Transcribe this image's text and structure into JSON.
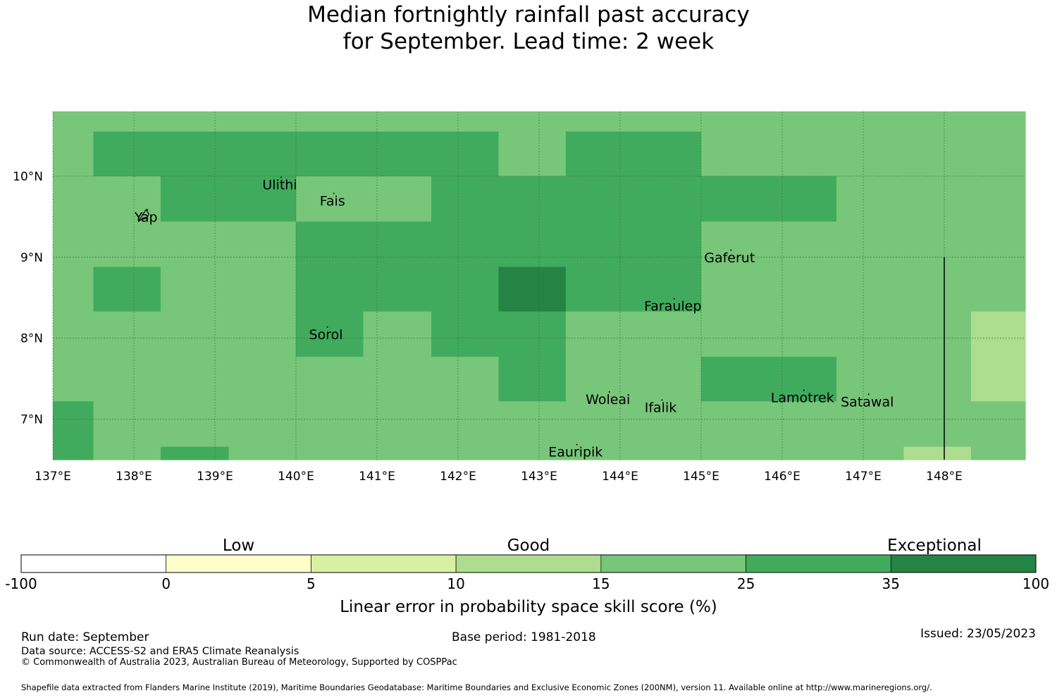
{
  "title": {
    "line1": "Median fortnightly rainfall past accuracy",
    "line2": "for September. Lead time: 2 week"
  },
  "map": {
    "lon_range": [
      137.0,
      149.0
    ],
    "lat_range": [
      6.5,
      10.8
    ],
    "lon_ticks": [
      {
        "value": 137,
        "label": "137°E"
      },
      {
        "value": 138,
        "label": "138°E"
      },
      {
        "value": 139,
        "label": "139°E"
      },
      {
        "value": 140,
        "label": "140°E"
      },
      {
        "value": 141,
        "label": "141°E"
      },
      {
        "value": 142,
        "label": "142°E"
      },
      {
        "value": 143,
        "label": "143°E"
      },
      {
        "value": 144,
        "label": "144°E"
      },
      {
        "value": 145,
        "label": "145°E"
      },
      {
        "value": 146,
        "label": "146°E"
      },
      {
        "value": 147,
        "label": "147°E"
      },
      {
        "value": 148,
        "label": "148°E"
      }
    ],
    "lat_ticks": [
      {
        "value": 10,
        "label": "10°N"
      },
      {
        "value": 9,
        "label": "9°N"
      },
      {
        "value": 8,
        "label": "8°N"
      },
      {
        "value": 7,
        "label": "7°N"
      }
    ],
    "grid_lines": true,
    "grid_color": "#2f6b2f",
    "eez_boundary": {
      "lon": 148.0,
      "lat_from": 6.5,
      "lat_to": 9.0
    },
    "cells": {
      "lon_edges": [
        137.0,
        137.5,
        138.33,
        139.17,
        140.0,
        140.83,
        141.67,
        142.5,
        143.33,
        144.17,
        145.0,
        145.83,
        146.67,
        147.5,
        148.33,
        149.0
      ],
      "lat_edges_top_down": [
        10.8,
        10.55,
        10.0,
        9.44,
        8.88,
        8.33,
        7.77,
        7.22,
        6.66,
        6.5
      ],
      "class_colors": [
        "#ffffff",
        "#ffffcc",
        "#d9f0a3",
        "#addd8e",
        "#78c679",
        "#41ab5d",
        "#238443"
      ],
      "grid": [
        [
          4,
          4,
          4,
          4,
          4,
          4,
          4,
          4,
          4,
          4,
          4,
          4,
          4,
          4,
          4
        ],
        [
          4,
          5,
          5,
          5,
          5,
          5,
          5,
          4,
          5,
          5,
          4,
          4,
          4,
          4,
          4
        ],
        [
          4,
          4,
          5,
          5,
          4,
          4,
          5,
          5,
          5,
          5,
          5,
          5,
          4,
          4,
          4
        ],
        [
          4,
          4,
          4,
          4,
          5,
          5,
          5,
          5,
          5,
          5,
          4,
          4,
          4,
          4,
          4
        ],
        [
          4,
          5,
          4,
          4,
          5,
          5,
          5,
          6,
          5,
          5,
          4,
          4,
          4,
          4,
          4
        ],
        [
          4,
          4,
          4,
          4,
          5,
          4,
          5,
          5,
          4,
          4,
          4,
          4,
          4,
          4,
          3
        ],
        [
          4,
          4,
          4,
          4,
          4,
          4,
          4,
          5,
          4,
          4,
          5,
          5,
          4,
          4,
          3
        ],
        [
          5,
          4,
          4,
          4,
          4,
          4,
          4,
          4,
          4,
          4,
          4,
          4,
          4,
          4,
          4
        ],
        [
          5,
          4,
          5,
          4,
          4,
          4,
          4,
          4,
          4,
          4,
          4,
          4,
          4,
          3,
          4
        ]
      ]
    },
    "places": [
      {
        "name": "Ulithi",
        "lon": 139.8,
        "lat": 9.9
      },
      {
        "name": "Fais",
        "lon": 140.45,
        "lat": 9.7
      },
      {
        "name": "Yap",
        "lon": 138.15,
        "lat": 9.5
      },
      {
        "name": "Gaferut",
        "lon": 145.35,
        "lat": 9.0
      },
      {
        "name": "Faraulep",
        "lon": 144.65,
        "lat": 8.4
      },
      {
        "name": "Sorol",
        "lon": 140.37,
        "lat": 8.05
      },
      {
        "name": "Woleai",
        "lon": 143.85,
        "lat": 7.25
      },
      {
        "name": "Ifalik",
        "lon": 144.5,
        "lat": 7.15
      },
      {
        "name": "Lamotrek",
        "lon": 146.25,
        "lat": 7.27
      },
      {
        "name": "Satawal",
        "lon": 147.05,
        "lat": 7.22
      },
      {
        "name": "Eauripik",
        "lon": 143.45,
        "lat": 6.6
      }
    ]
  },
  "colorbar": {
    "categories": [
      {
        "label": "Low",
        "at_boundary": 1.5
      },
      {
        "label": "Good",
        "at_boundary": 3.5
      },
      {
        "label": "Exceptional",
        "at_boundary": 6.3
      }
    ],
    "boundaries": [
      "-100",
      "0",
      "5",
      "10",
      "15",
      "25",
      "35",
      "100"
    ],
    "colors": [
      "#ffffff",
      "#ffffcc",
      "#d9f0a3",
      "#addd8e",
      "#78c679",
      "#41ab5d",
      "#238443"
    ],
    "label": "Linear error in probability space skill score (%)"
  },
  "footer": {
    "run_date": "Run date: September",
    "base_period": "Base period: 1981-2018",
    "issued": "Issued: 23/05/2023",
    "data_source": "Data source: ACCESS-S2 and ERA5 Climate Reanalysis",
    "copyright": "© Commonwealth of Australia 2023, Australian Bureau of Meteorology, Supported by COSPPac",
    "shapefile": "Shapefile data extracted from Flanders Marine Institute (2019), Maritime Boundaries Geodatabase: Maritime Boundaries and Exclusive Economic Zones (200NM), version 11. Available online at http://www.marineregions.org/."
  }
}
